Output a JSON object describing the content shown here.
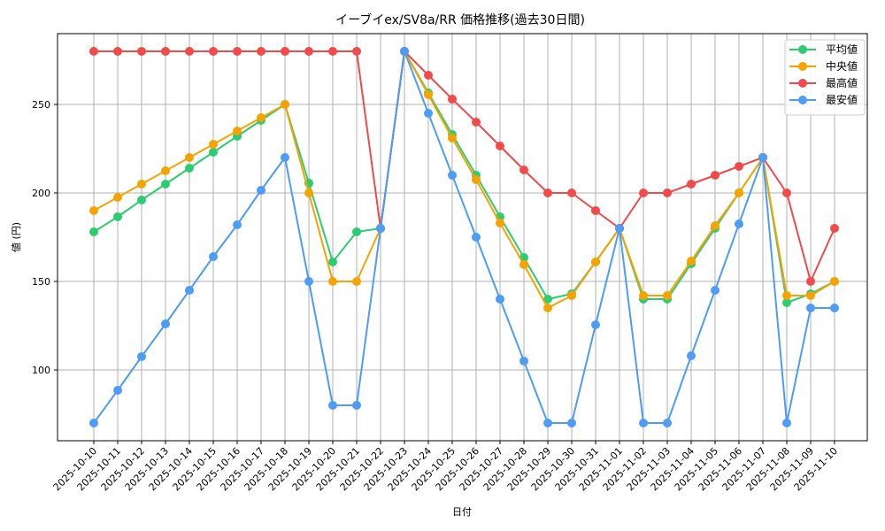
{
  "chart_data": {
    "type": "line",
    "title": "イーブイex/SV8a/RR 価格推移(過去30日間)",
    "xlabel": "日付",
    "ylabel": "値 (円)",
    "ylim": [
      60,
      290
    ],
    "yticks": [
      100,
      150,
      200,
      250
    ],
    "grid": true,
    "legend_position": "upper right",
    "x": [
      "2025-10-10",
      "2025-10-11",
      "2025-10-12",
      "2025-10-13",
      "2025-10-14",
      "2025-10-15",
      "2025-10-16",
      "2025-10-17",
      "2025-10-18",
      "2025-10-19",
      "2025-10-20",
      "2025-10-21",
      "2025-10-22",
      "2025-10-23",
      "2025-10-24",
      "2025-10-25",
      "2025-10-26",
      "2025-10-27",
      "2025-10-28",
      "2025-10-29",
      "2025-10-30",
      "2025-10-31",
      "2025-11-01",
      "2025-11-02",
      "2025-11-03",
      "2025-11-04",
      "2025-11-05",
      "2025-11-06",
      "2025-11-07",
      "2025-11-08",
      "2025-11-09",
      "2025-11-10"
    ],
    "series": [
      {
        "name": "平均値",
        "color": "#2ecc71",
        "values": [
          178,
          186.5,
          196,
          205,
          214,
          223,
          232,
          241,
          250,
          205.5,
          161,
          178,
          180,
          280,
          256.5,
          233,
          210,
          186.5,
          163.5,
          140,
          143,
          161,
          180,
          140,
          140,
          160,
          180,
          200,
          220,
          138,
          143,
          150
        ]
      },
      {
        "name": "中央値",
        "color": "#f5a300",
        "values": [
          190,
          197.5,
          205,
          212.5,
          220,
          227.5,
          235,
          242.5,
          250,
          200,
          150,
          150,
          180,
          280,
          255.5,
          231,
          207.5,
          183,
          159.5,
          135,
          142,
          161,
          180,
          142,
          142,
          161.5,
          181.5,
          200,
          220,
          142,
          142,
          150
        ]
      },
      {
        "name": "最高値",
        "color": "#f04a4a",
        "values": [
          280,
          280,
          280,
          280,
          280,
          280,
          280,
          280,
          280,
          280,
          280,
          280,
          180,
          280,
          266.5,
          253,
          240,
          226.5,
          213,
          200,
          200,
          190,
          180,
          200,
          200,
          205,
          210,
          215,
          220,
          200,
          150,
          180
        ]
      },
      {
        "name": "最安値",
        "color": "#4d9cf5",
        "values": [
          70,
          88.5,
          107.5,
          126,
          145,
          164,
          182,
          201.5,
          220,
          150,
          80,
          80,
          180,
          280,
          245,
          210,
          175,
          140,
          105,
          70,
          70,
          125.5,
          180,
          70,
          70,
          108,
          145,
          182.5,
          220,
          70,
          135,
          135
        ]
      }
    ]
  },
  "style": {
    "grid_color": "#b0b0b0",
    "axis_color": "#000000",
    "legend_border": "#cccccc"
  }
}
